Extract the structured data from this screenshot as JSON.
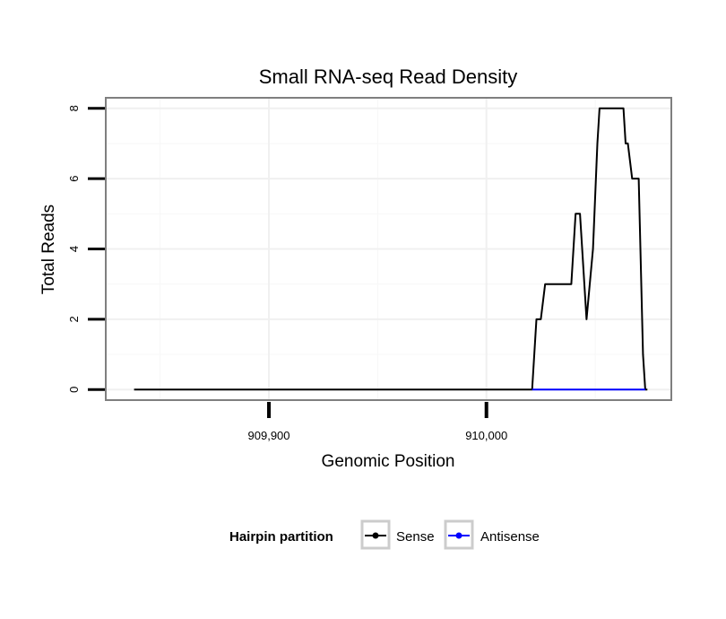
{
  "chart_data": {
    "type": "line",
    "title": "Small RNA-seq Read Density",
    "xlabel": "Genomic Position",
    "ylabel": "Total Reads",
    "xlim": [
      909825,
      910085
    ],
    "ylim": [
      -0.3,
      8.3
    ],
    "x_ticks": [
      {
        "value": 909900,
        "label": "909,900"
      },
      {
        "value": 910000,
        "label": "910,000"
      }
    ],
    "x_minor_grid": [
      909850,
      909950,
      910050
    ],
    "y_ticks": [
      {
        "value": 0,
        "label": "0"
      },
      {
        "value": 2,
        "label": "2"
      },
      {
        "value": 4,
        "label": "4"
      },
      {
        "value": 6,
        "label": "6"
      },
      {
        "value": 8,
        "label": "8"
      }
    ],
    "y_minor_grid": [
      1,
      3,
      5,
      7
    ],
    "grid": true,
    "legend": {
      "title": "Hairpin partition",
      "position": "bottom"
    },
    "series": [
      {
        "name": "Sense",
        "color": "#000000",
        "points": [
          [
            909838,
            0
          ],
          [
            910021,
            0
          ],
          [
            910023,
            2
          ],
          [
            910025,
            2
          ],
          [
            910027,
            3
          ],
          [
            910039,
            3
          ],
          [
            910041,
            5
          ],
          [
            910043,
            5
          ],
          [
            910046,
            2
          ],
          [
            910049,
            4
          ],
          [
            910051,
            7
          ],
          [
            910052,
            8
          ],
          [
            910063,
            8
          ],
          [
            910064,
            7
          ],
          [
            910065,
            7
          ],
          [
            910067,
            6
          ],
          [
            910070,
            6
          ],
          [
            910072,
            1
          ],
          [
            910073,
            0
          ],
          [
            910074,
            0
          ]
        ]
      },
      {
        "name": "Antisense",
        "color": "#0000ff",
        "points": [
          [
            910021,
            0
          ],
          [
            910073,
            0
          ]
        ]
      }
    ]
  }
}
